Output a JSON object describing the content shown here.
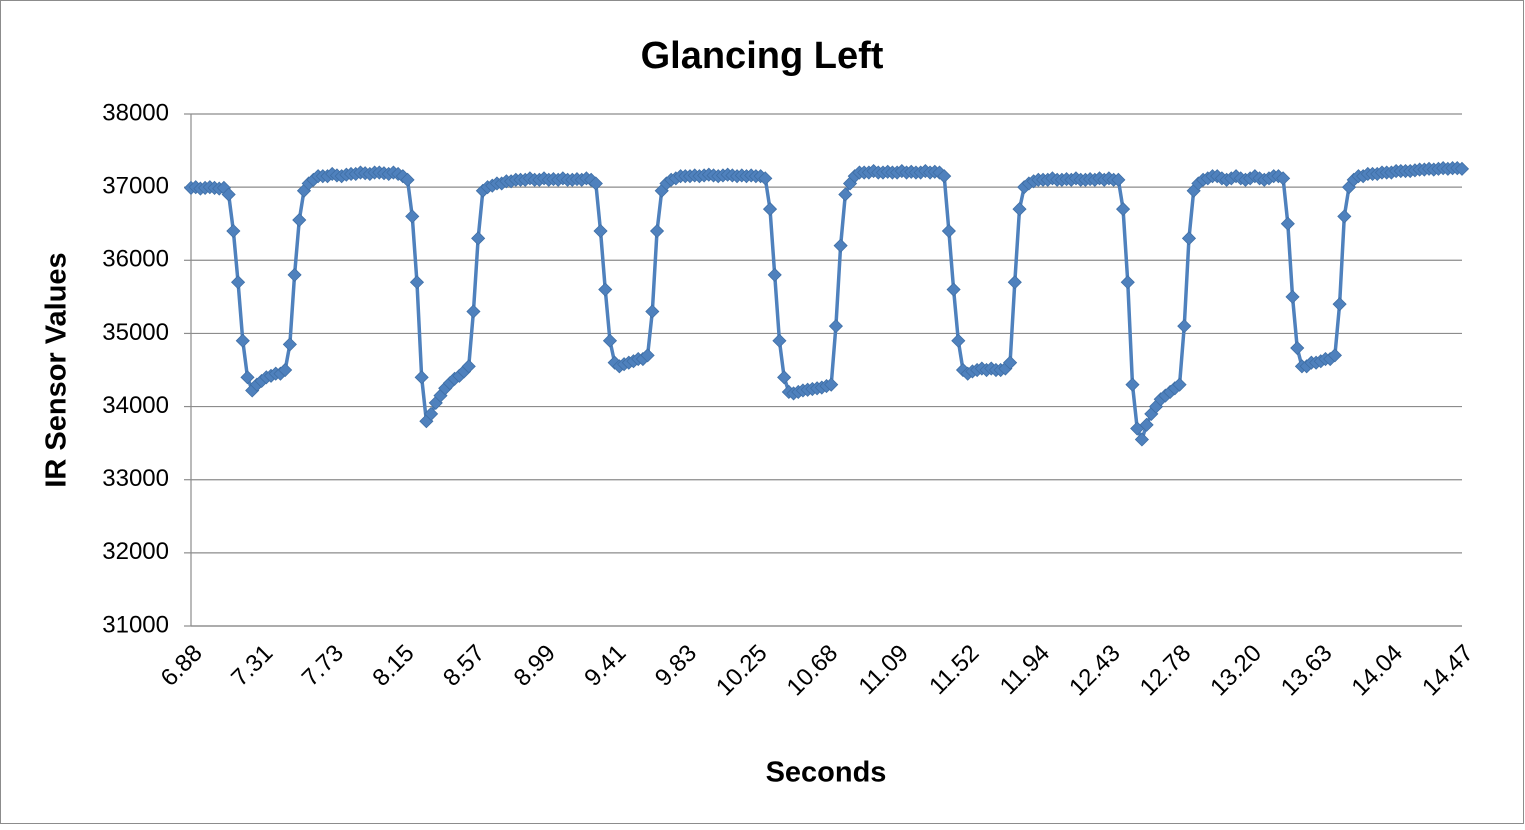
{
  "chart_data": {
    "type": "line",
    "title": "Glancing Left",
    "x_label": "Seconds",
    "y_label": "IR Sensor Values",
    "categories": [
      "6.88",
      null,
      null,
      null,
      null,
      null,
      null,
      null,
      null,
      null,
      null,
      null,
      null,
      null,
      null,
      "7.31",
      null,
      null,
      null,
      null,
      null,
      null,
      null,
      null,
      null,
      null,
      null,
      null,
      null,
      null,
      "7.73",
      null,
      null,
      null,
      null,
      null,
      null,
      null,
      null,
      null,
      null,
      null,
      null,
      null,
      null,
      "8.15",
      null,
      null,
      null,
      null,
      null,
      null,
      null,
      null,
      null,
      null,
      null,
      null,
      null,
      null,
      "8.57",
      null,
      null,
      null,
      null,
      null,
      null,
      null,
      null,
      null,
      null,
      null,
      null,
      null,
      null,
      "8.99",
      null,
      null,
      null,
      null,
      null,
      null,
      null,
      null,
      null,
      null,
      null,
      null,
      null,
      null,
      "9.41",
      null,
      null,
      null,
      null,
      null,
      null,
      null,
      null,
      null,
      null,
      null,
      null,
      null,
      null,
      "9.83",
      null,
      null,
      null,
      null,
      null,
      null,
      null,
      null,
      null,
      null,
      null,
      null,
      null,
      null,
      "10.25",
      null,
      null,
      null,
      null,
      null,
      null,
      null,
      null,
      null,
      null,
      null,
      null,
      null,
      null,
      "10.68",
      null,
      null,
      null,
      null,
      null,
      null,
      null,
      null,
      null,
      null,
      null,
      null,
      null,
      null,
      "11.09",
      null,
      null,
      null,
      null,
      null,
      null,
      null,
      null,
      null,
      null,
      null,
      null,
      null,
      null,
      "11.52",
      null,
      null,
      null,
      null,
      null,
      null,
      null,
      null,
      null,
      null,
      null,
      null,
      null,
      null,
      "11.94",
      null,
      null,
      null,
      null,
      null,
      null,
      null,
      null,
      null,
      null,
      null,
      null,
      null,
      null,
      "12.43",
      null,
      null,
      null,
      null,
      null,
      null,
      null,
      null,
      null,
      null,
      null,
      null,
      null,
      null,
      "12.78",
      null,
      null,
      null,
      null,
      null,
      null,
      null,
      null,
      null,
      null,
      null,
      null,
      null,
      null,
      "13.20",
      null,
      null,
      null,
      null,
      null,
      null,
      null,
      null,
      null,
      null,
      null,
      null,
      null,
      null,
      "13.63",
      null,
      null,
      null,
      null,
      null,
      null,
      null,
      null,
      null,
      null,
      null,
      null,
      null,
      null,
      "14.04",
      null,
      null,
      null,
      null,
      null,
      null,
      null,
      null,
      null,
      null,
      null,
      null,
      null,
      null,
      "14.47"
    ],
    "series": [
      {
        "color": "#4f81bd",
        "values": [
          36990,
          37000,
          36980,
          36990,
          37000,
          36990,
          36980,
          36990,
          36900,
          36400,
          35700,
          34900,
          34400,
          34220,
          34300,
          34350,
          34400,
          34420,
          34450,
          34450,
          34500,
          34850,
          35800,
          36550,
          36950,
          37050,
          37100,
          37150,
          37150,
          37150,
          37180,
          37160,
          37150,
          37170,
          37180,
          37180,
          37200,
          37190,
          37180,
          37200,
          37200,
          37190,
          37180,
          37200,
          37180,
          37150,
          37100,
          36600,
          35700,
          34400,
          33800,
          33900,
          34050,
          34150,
          34250,
          34320,
          34380,
          34420,
          34480,
          34550,
          35300,
          36300,
          36950,
          37000,
          37020,
          37050,
          37050,
          37080,
          37080,
          37100,
          37100,
          37100,
          37120,
          37100,
          37100,
          37120,
          37100,
          37110,
          37100,
          37120,
          37100,
          37100,
          37110,
          37100,
          37120,
          37100,
          37050,
          36400,
          35600,
          34900,
          34600,
          34550,
          34580,
          34600,
          34620,
          34650,
          34650,
          34700,
          35300,
          36400,
          36950,
          37050,
          37100,
          37120,
          37150,
          37150,
          37150,
          37160,
          37150,
          37160,
          37170,
          37160,
          37150,
          37160,
          37170,
          37160,
          37150,
          37160,
          37150,
          37160,
          37150,
          37150,
          37120,
          36700,
          35800,
          34900,
          34400,
          34200,
          34180,
          34200,
          34220,
          34230,
          34240,
          34250,
          34260,
          34280,
          34300,
          35100,
          36200,
          36900,
          37050,
          37150,
          37200,
          37200,
          37200,
          37220,
          37200,
          37200,
          37210,
          37200,
          37200,
          37220,
          37200,
          37210,
          37200,
          37200,
          37220,
          37200,
          37210,
          37200,
          37150,
          36400,
          35600,
          34900,
          34500,
          34450,
          34480,
          34500,
          34520,
          34500,
          34520,
          34500,
          34500,
          34520,
          34600,
          35700,
          36700,
          37000,
          37050,
          37080,
          37100,
          37100,
          37100,
          37120,
          37100,
          37100,
          37110,
          37100,
          37120,
          37100,
          37100,
          37110,
          37100,
          37120,
          37100,
          37120,
          37100,
          37100,
          36700,
          35700,
          34300,
          33700,
          33550,
          33750,
          33900,
          34000,
          34100,
          34150,
          34200,
          34250,
          34300,
          35100,
          36300,
          36950,
          37050,
          37100,
          37120,
          37150,
          37150,
          37120,
          37100,
          37120,
          37150,
          37120,
          37100,
          37120,
          37150,
          37120,
          37100,
          37120,
          37150,
          37150,
          37120,
          36500,
          35500,
          34800,
          34550,
          34550,
          34600,
          34600,
          34620,
          34650,
          34650,
          34700,
          35400,
          36600,
          37000,
          37100,
          37150,
          37150,
          37180,
          37180,
          37180,
          37200,
          37200,
          37200,
          37220,
          37220,
          37220,
          37220,
          37230,
          37240,
          37240,
          37250,
          37240,
          37250,
          37260,
          37250,
          37260,
          37260,
          37250
        ]
      }
    ],
    "ylim": [
      31000,
      38000
    ],
    "yticks": [
      31000,
      32000,
      33000,
      34000,
      35000,
      36000,
      37000,
      38000
    ],
    "grid": true,
    "marker": "diamond"
  }
}
